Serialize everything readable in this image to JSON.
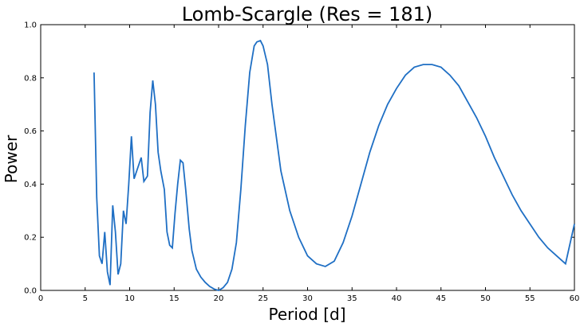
{
  "chart_data": {
    "type": "line",
    "title": "Lomb-Scargle (Res = 181)",
    "xlabel": "Period [d]",
    "ylabel": "Power",
    "xlim": [
      0,
      60
    ],
    "ylim": [
      0,
      1.0
    ],
    "xticks": [
      "0",
      "5",
      "10",
      "15",
      "20",
      "25",
      "30",
      "35",
      "40",
      "45",
      "50",
      "55",
      "60"
    ],
    "yticks": [
      "0.0",
      "0.2",
      "0.4",
      "0.6",
      "0.8",
      "1.0"
    ],
    "grid": false,
    "line_color": "#1f6fc4",
    "series": [
      {
        "x": [
          6.0,
          6.3,
          6.6,
          6.9,
          7.2,
          7.5,
          7.8,
          8.1,
          8.4,
          8.7,
          9.0,
          9.3,
          9.6,
          9.9,
          10.2,
          10.5,
          10.9,
          11.3,
          11.6,
          12.0,
          12.3,
          12.6,
          12.9,
          13.2,
          13.5,
          13.9,
          14.2,
          14.5,
          14.8,
          15.1,
          15.4,
          15.7,
          16.0,
          16.3,
          16.7,
          17.0,
          17.5,
          18.0,
          18.5,
          19.0,
          19.5,
          20.0,
          20.5,
          21.0,
          21.5,
          22.0,
          22.5,
          23.0,
          23.5,
          24.0,
          24.3,
          24.7,
          25.0,
          25.5,
          26.0,
          27.0,
          28.0,
          29.0,
          30.0,
          31.0,
          32.0,
          33.0,
          34.0,
          35.0,
          36.0,
          37.0,
          38.0,
          39.0,
          40.0,
          41.0,
          42.0,
          43.0,
          44.0,
          45.0,
          46.0,
          47.0,
          48.0,
          49.0,
          50.0,
          51.0,
          52.0,
          53.0,
          54.0,
          55.0,
          56.0,
          57.0,
          58.0,
          59.0,
          60.0
        ],
        "y": [
          0.82,
          0.35,
          0.13,
          0.1,
          0.22,
          0.07,
          0.02,
          0.32,
          0.22,
          0.06,
          0.1,
          0.3,
          0.25,
          0.4,
          0.58,
          0.42,
          0.46,
          0.5,
          0.41,
          0.43,
          0.67,
          0.79,
          0.7,
          0.52,
          0.45,
          0.38,
          0.22,
          0.17,
          0.16,
          0.29,
          0.4,
          0.49,
          0.48,
          0.38,
          0.23,
          0.15,
          0.08,
          0.05,
          0.03,
          0.015,
          0.005,
          0.0,
          0.01,
          0.03,
          0.08,
          0.18,
          0.38,
          0.62,
          0.82,
          0.92,
          0.935,
          0.94,
          0.92,
          0.85,
          0.7,
          0.45,
          0.3,
          0.2,
          0.13,
          0.1,
          0.09,
          0.11,
          0.18,
          0.28,
          0.4,
          0.52,
          0.62,
          0.7,
          0.76,
          0.81,
          0.84,
          0.85,
          0.85,
          0.84,
          0.81,
          0.77,
          0.71,
          0.65,
          0.58,
          0.5,
          0.43,
          0.36,
          0.3,
          0.25,
          0.2,
          0.16,
          0.13,
          0.1,
          0.25
        ]
      }
    ]
  }
}
